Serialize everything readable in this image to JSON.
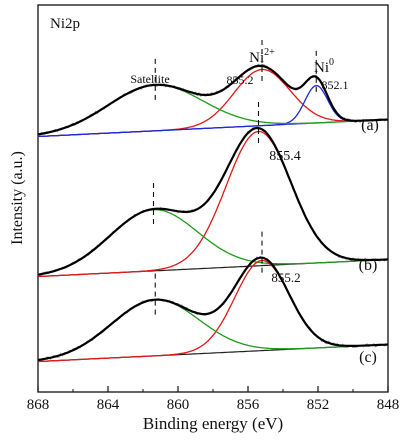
{
  "chart_data": {
    "type": "line",
    "title": "",
    "corner_label": "Ni2p",
    "xlabel": "Binding energy (eV)",
    "ylabel": "Intensity (a.u.)",
    "xlim": [
      868,
      848
    ],
    "x_reversed": true,
    "xticks": [
      868,
      864,
      860,
      856,
      852,
      848
    ],
    "y_ticks_shown": false,
    "grid": false,
    "legend": "none",
    "colors": {
      "raw": "#9a9a9a",
      "envelope": "#000000",
      "ni2_fit": "#e01818",
      "ni0_fit": "#1a2ad6",
      "satellite_fit": "#1f9a1f",
      "background": "#3a3ad0"
    },
    "annotations": {
      "satellite": "Satellite",
      "ni2_base": "Ni",
      "ni2_sup": "2+",
      "ni0_base": "Ni",
      "ni0_sup": "0",
      "ni0_peak": "852.1"
    },
    "panels": [
      {
        "label": "(a)",
        "peak_label": "855.2",
        "baseline_start": 0.05,
        "baseline_end": 0.15,
        "baseline_color": "#3a3ad0",
        "peaks": [
          {
            "component": "Ni2+",
            "center": 855.2,
            "height": 0.33,
            "sigma": 1.6
          },
          {
            "component": "Ni0",
            "center": 852.1,
            "height": 0.22,
            "sigma": 0.65
          },
          {
            "component": "Satellite",
            "center": 861.3,
            "height": 0.27,
            "sigma": 2.7
          }
        ]
      },
      {
        "label": "(b)",
        "peak_label": "855.4",
        "baseline_start": 0.05,
        "baseline_end": 0.15,
        "baseline_color": "#222222",
        "peaks": [
          {
            "component": "Ni2+",
            "center": 855.4,
            "height": 0.79,
            "sigma": 1.85
          },
          {
            "component": "Satellite",
            "center": 861.4,
            "height": 0.36,
            "sigma": 2.5
          }
        ]
      },
      {
        "label": "(c)",
        "peak_label": "855.2",
        "baseline_start": 0.05,
        "baseline_end": 0.15,
        "baseline_color": "#222222",
        "peaks": [
          {
            "component": "Ni2+",
            "center": 855.2,
            "height": 0.53,
            "sigma": 1.55
          },
          {
            "component": "Satellite",
            "center": 861.3,
            "height": 0.33,
            "sigma": 2.5
          }
        ]
      }
    ]
  }
}
